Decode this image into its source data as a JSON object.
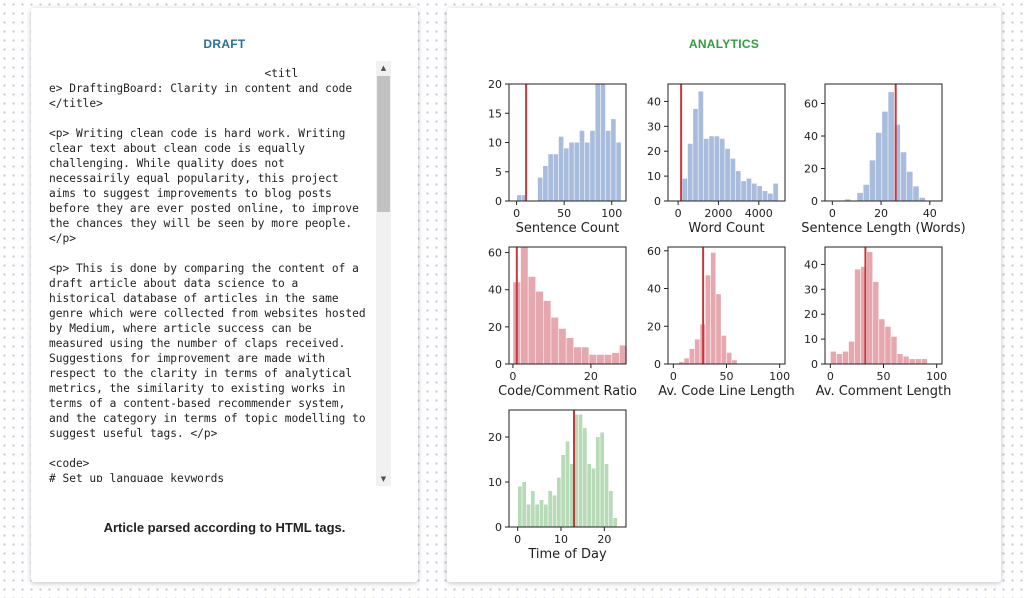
{
  "draft": {
    "title": "DRAFT",
    "code_lines": [
      "                                <titl",
      "e> DraftingBoard: Clarity in content and code",
      "</title>",
      "",
      "<p> Writing clean code is hard work. Writing",
      "clear text about clean code is equally",
      "challenging. While quality does not",
      "necessairily equal popularity, this project",
      "aims to suggest improvements to blog posts",
      "before they are ever posted online, to improve",
      "the chances they will be seen by more people.",
      "</p>",
      "",
      "<p> This is done by comparing the content of a",
      "draft article about data science to a",
      "historical database of articles in the same",
      "genre which were collected from websites hosted",
      "by Medium, where article success can be",
      "measured using the number of claps received.",
      "Suggestions for improvement are made with",
      "respect to the clarity in terms of analytical",
      "metrics, the similarity to existing works in",
      "terms of a content-based recommender system,",
      "and the category in terms of topic modelling to",
      "suggest useful tags. </p>",
      "",
      "<code>",
      "# Set up language keywords"
    ],
    "scroll_up_icon": "▲",
    "scroll_down_icon": "▼",
    "caption": "Article parsed according to HTML tags."
  },
  "analytics": {
    "title": "ANALYTICS",
    "colors": {
      "blue": "#a8bcdd",
      "red": "#e6a8ae",
      "green": "#b6dbb6",
      "line": "#c8383e"
    }
  },
  "chart_data": [
    {
      "type": "bar",
      "xlabel": "Sentence Count",
      "color": "blue",
      "xlim": [
        -8,
        115
      ],
      "ylim": [
        0,
        20
      ],
      "xticks": [
        0,
        50,
        100
      ],
      "yticks": [
        0,
        5,
        10,
        15,
        20
      ],
      "marker": 10,
      "bin_start": 0,
      "bin_width": 5.5,
      "values": [
        1,
        1,
        0,
        0,
        4,
        6,
        8,
        8,
        11,
        9,
        10,
        10,
        12,
        10,
        12,
        20,
        20,
        12,
        14,
        10
      ]
    },
    {
      "type": "bar",
      "xlabel": "Word Count",
      "color": "blue",
      "xlim": [
        -500,
        5300
      ],
      "ylim": [
        0,
        47
      ],
      "xticks": [
        0,
        2000,
        4000
      ],
      "yticks": [
        0,
        10,
        20,
        30,
        40
      ],
      "marker": 150,
      "bin_start": 200,
      "bin_width": 265,
      "values": [
        9,
        23,
        37,
        44,
        25,
        26,
        26,
        25,
        21,
        17,
        12,
        8,
        9,
        7,
        6,
        4,
        3,
        7
      ]
    },
    {
      "type": "bar",
      "xlabel": "Sentence Length (Words)",
      "color": "blue",
      "xlim": [
        -3,
        45
      ],
      "ylim": [
        0,
        72
      ],
      "xticks": [
        0,
        20,
        40
      ],
      "yticks": [
        0,
        20,
        40,
        60
      ],
      "marker": 26,
      "bin_start": 5,
      "bin_width": 2.55,
      "values": [
        1,
        0,
        5,
        10,
        25,
        42,
        55,
        67,
        47,
        30,
        18,
        9,
        2
      ]
    },
    {
      "type": "bar",
      "xlabel": "Code/Comment Ratio",
      "color": "red",
      "xlim": [
        -1,
        29
      ],
      "ylim": [
        0,
        63
      ],
      "xticks": [
        0,
        20
      ],
      "yticks": [
        0,
        20,
        40,
        60
      ],
      "marker": 1,
      "bin_start": 0,
      "bin_width": 1.95,
      "values": [
        44,
        63,
        47,
        39,
        34,
        25,
        19,
        14,
        9,
        9,
        5,
        5,
        5,
        6,
        10
      ]
    },
    {
      "type": "bar",
      "xlabel": "Av. Code Line Length",
      "color": "red",
      "xlim": [
        -5,
        105
      ],
      "ylim": [
        0,
        62
      ],
      "xticks": [
        0,
        50,
        100
      ],
      "yticks": [
        0,
        20,
        40,
        60
      ],
      "marker": 28,
      "bin_start": 5,
      "bin_width": 5,
      "values": [
        1,
        3,
        8,
        13,
        21,
        47,
        59,
        37,
        15,
        6,
        2
      ]
    },
    {
      "type": "bar",
      "xlabel": "Av. Comment Length",
      "color": "red",
      "xlim": [
        -5,
        105
      ],
      "ylim": [
        0,
        47
      ],
      "xticks": [
        0,
        50,
        100
      ],
      "yticks": [
        0,
        10,
        20,
        30,
        40
      ],
      "marker": 33,
      "bin_start": 0,
      "bin_width": 5.7,
      "values": [
        5,
        4,
        5,
        9,
        38,
        39,
        45,
        33,
        18,
        15,
        11,
        4,
        3,
        2,
        2,
        2
      ]
    },
    {
      "type": "bar",
      "xlabel": "Time of Day",
      "color": "green",
      "xlim": [
        -2,
        25
      ],
      "ylim": [
        0,
        26
      ],
      "xticks": [
        0,
        10,
        20
      ],
      "yticks": [
        0,
        10,
        20
      ],
      "marker": 13,
      "bin_start": 0,
      "bin_width": 1,
      "values": [
        9,
        10,
        5,
        8,
        5,
        6,
        5,
        8,
        7,
        11,
        16,
        19,
        14,
        25,
        25,
        22,
        14,
        13,
        20,
        21,
        14,
        8,
        2
      ]
    }
  ]
}
